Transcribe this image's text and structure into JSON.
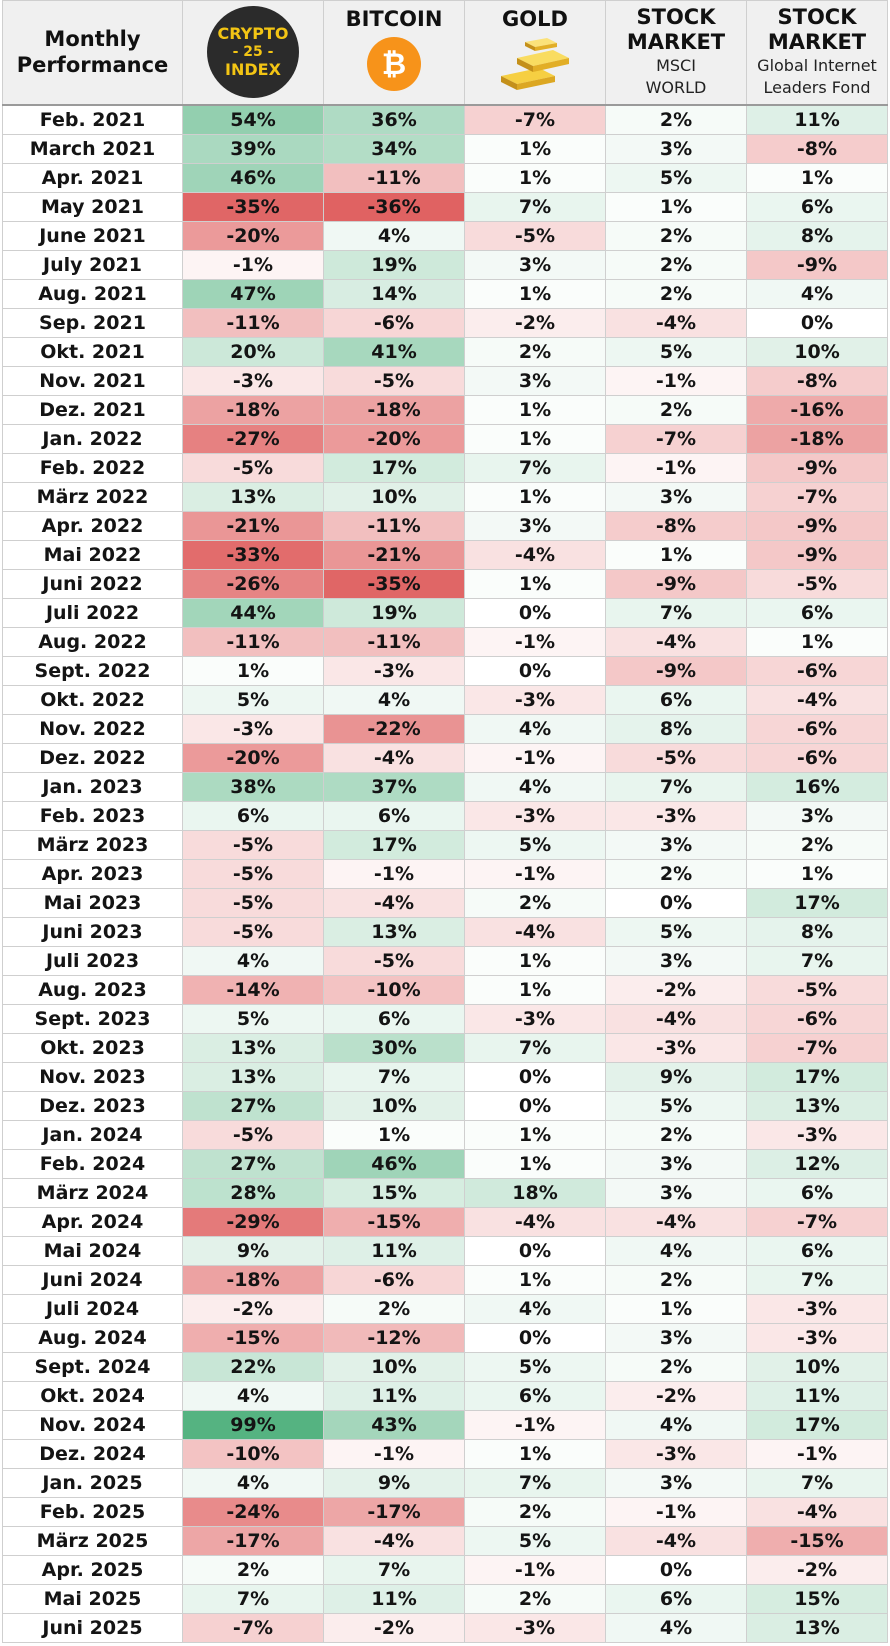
{
  "colors": {
    "header_bg": "#f0f0f0",
    "positive": "#4caf7a",
    "negative": "#de5a5a",
    "logo_bg": "#2b2b2b",
    "logo_text": "#f3c514",
    "bitcoin_orange": "#f7931a",
    "gold": "#e8b628"
  },
  "header": {
    "month_line1": "Monthly",
    "month_line2": "Performance",
    "crypto_logo_line1": "CRYPTO",
    "crypto_logo_line2": "- 25 -",
    "crypto_logo_line3": "INDEX",
    "bitcoin": "BITCOIN",
    "gold": "GOLD",
    "msci_title1": "STOCK",
    "msci_title2": "MARKET",
    "msci_sub1": "MSCI",
    "msci_sub2": "WORLD",
    "fund_title1": "STOCK",
    "fund_title2": "MARKET",
    "fund_sub1": "Global Internet",
    "fund_sub2": "Leaders Fond",
    "icons": [
      "crypto-25-index-logo",
      "bitcoin-icon",
      "gold-bars-icon"
    ]
  },
  "chart_data": {
    "type": "table",
    "columns": [
      "Crypto 25 Index",
      "Bitcoin",
      "Gold",
      "MSCI World",
      "Global Internet Leaders Fond"
    ],
    "rows": [
      {
        "month": "Feb. 2021",
        "values": [
          54,
          36,
          -7,
          2,
          11
        ]
      },
      {
        "month": "March 2021",
        "values": [
          39,
          34,
          1,
          3,
          -8
        ]
      },
      {
        "month": "Apr. 2021",
        "values": [
          46,
          -11,
          1,
          5,
          1
        ]
      },
      {
        "month": "May 2021",
        "values": [
          -35,
          -36,
          7,
          1,
          6
        ]
      },
      {
        "month": "June 2021",
        "values": [
          -20,
          4,
          -5,
          2,
          8
        ]
      },
      {
        "month": "July 2021",
        "values": [
          -1,
          19,
          3,
          2,
          -9
        ]
      },
      {
        "month": "Aug. 2021",
        "values": [
          47,
          14,
          1,
          2,
          4
        ]
      },
      {
        "month": "Sep. 2021",
        "values": [
          -11,
          -6,
          -2,
          -4,
          0
        ]
      },
      {
        "month": "Okt. 2021",
        "values": [
          20,
          41,
          2,
          5,
          10
        ]
      },
      {
        "month": "Nov. 2021",
        "values": [
          -3,
          -5,
          3,
          -1,
          -8
        ]
      },
      {
        "month": "Dez. 2021",
        "values": [
          -18,
          -18,
          1,
          2,
          -16
        ]
      },
      {
        "month": "Jan. 2022",
        "values": [
          -27,
          -20,
          1,
          -7,
          -18
        ]
      },
      {
        "month": "Feb. 2022",
        "values": [
          -5,
          17,
          7,
          -1,
          -9
        ]
      },
      {
        "month": "März 2022",
        "values": [
          13,
          10,
          1,
          3,
          -7
        ]
      },
      {
        "month": "Apr. 2022",
        "values": [
          -21,
          -11,
          3,
          -8,
          -9
        ]
      },
      {
        "month": "Mai 2022",
        "values": [
          -33,
          -21,
          -4,
          1,
          -9
        ]
      },
      {
        "month": "Juni 2022",
        "values": [
          -26,
          -35,
          1,
          -9,
          -5
        ]
      },
      {
        "month": "Juli 2022",
        "values": [
          44,
          19,
          0,
          7,
          6
        ]
      },
      {
        "month": "Aug. 2022",
        "values": [
          -11,
          -11,
          -1,
          -4,
          1
        ]
      },
      {
        "month": "Sept. 2022",
        "values": [
          1,
          -3,
          0,
          -9,
          -6
        ]
      },
      {
        "month": "Okt. 2022",
        "values": [
          5,
          4,
          -3,
          6,
          -4
        ]
      },
      {
        "month": "Nov. 2022",
        "values": [
          -3,
          -22,
          4,
          8,
          -6
        ]
      },
      {
        "month": "Dez. 2022",
        "values": [
          -20,
          -4,
          -1,
          -5,
          -6
        ]
      },
      {
        "month": "Jan. 2023",
        "values": [
          38,
          37,
          4,
          7,
          16
        ]
      },
      {
        "month": "Feb. 2023",
        "values": [
          6,
          6,
          -3,
          -3,
          3
        ]
      },
      {
        "month": "März 2023",
        "values": [
          -5,
          17,
          5,
          3,
          2
        ]
      },
      {
        "month": "Apr. 2023",
        "values": [
          -5,
          -1,
          -1,
          2,
          1
        ]
      },
      {
        "month": "Mai 2023",
        "values": [
          -5,
          -4,
          2,
          0,
          17
        ]
      },
      {
        "month": "Juni 2023",
        "values": [
          -5,
          13,
          -4,
          5,
          8
        ]
      },
      {
        "month": "Juli 2023",
        "values": [
          4,
          -5,
          1,
          3,
          7
        ]
      },
      {
        "month": "Aug. 2023",
        "values": [
          -14,
          -10,
          1,
          -2,
          -5
        ]
      },
      {
        "month": "Sept. 2023",
        "values": [
          5,
          6,
          -3,
          -4,
          -6
        ]
      },
      {
        "month": "Okt. 2023",
        "values": [
          13,
          30,
          7,
          -3,
          -7
        ]
      },
      {
        "month": "Nov. 2023",
        "values": [
          13,
          7,
          0,
          9,
          17
        ]
      },
      {
        "month": "Dez. 2023",
        "values": [
          27,
          10,
          0,
          5,
          13
        ]
      },
      {
        "month": "Jan. 2024",
        "values": [
          -5,
          1,
          1,
          2,
          -3
        ]
      },
      {
        "month": "Feb. 2024",
        "values": [
          27,
          46,
          1,
          3,
          12
        ]
      },
      {
        "month": "März 2024",
        "values": [
          28,
          15,
          18,
          3,
          6
        ]
      },
      {
        "month": "Apr. 2024",
        "values": [
          -29,
          -15,
          -4,
          -4,
          -7
        ]
      },
      {
        "month": "Mai 2024",
        "values": [
          9,
          11,
          0,
          4,
          6
        ]
      },
      {
        "month": "Juni 2024",
        "values": [
          -18,
          -6,
          1,
          2,
          7
        ]
      },
      {
        "month": "Juli 2024",
        "values": [
          -2,
          2,
          4,
          1,
          -3
        ]
      },
      {
        "month": "Aug. 2024",
        "values": [
          -15,
          -12,
          0,
          3,
          -3
        ]
      },
      {
        "month": "Sept. 2024",
        "values": [
          22,
          10,
          5,
          2,
          10
        ]
      },
      {
        "month": "Okt. 2024",
        "values": [
          4,
          11,
          6,
          -2,
          11
        ]
      },
      {
        "month": "Nov. 2024",
        "values": [
          99,
          43,
          -1,
          4,
          17
        ]
      },
      {
        "month": "Dez. 2024",
        "values": [
          -10,
          -1,
          1,
          -3,
          -1
        ]
      },
      {
        "month": "Jan. 2025",
        "values": [
          4,
          9,
          7,
          3,
          7
        ]
      },
      {
        "month": "Feb. 2025",
        "values": [
          -24,
          -17,
          2,
          -1,
          -4
        ]
      },
      {
        "month": "März 2025",
        "values": [
          -17,
          -4,
          5,
          -4,
          -15
        ]
      },
      {
        "month": "Apr. 2025",
        "values": [
          2,
          7,
          -1,
          0,
          -2
        ]
      },
      {
        "month": "Mai 2025",
        "values": [
          7,
          11,
          2,
          6,
          15
        ]
      },
      {
        "month": "Juni 2025",
        "values": [
          -7,
          -2,
          -3,
          4,
          13
        ]
      }
    ]
  }
}
